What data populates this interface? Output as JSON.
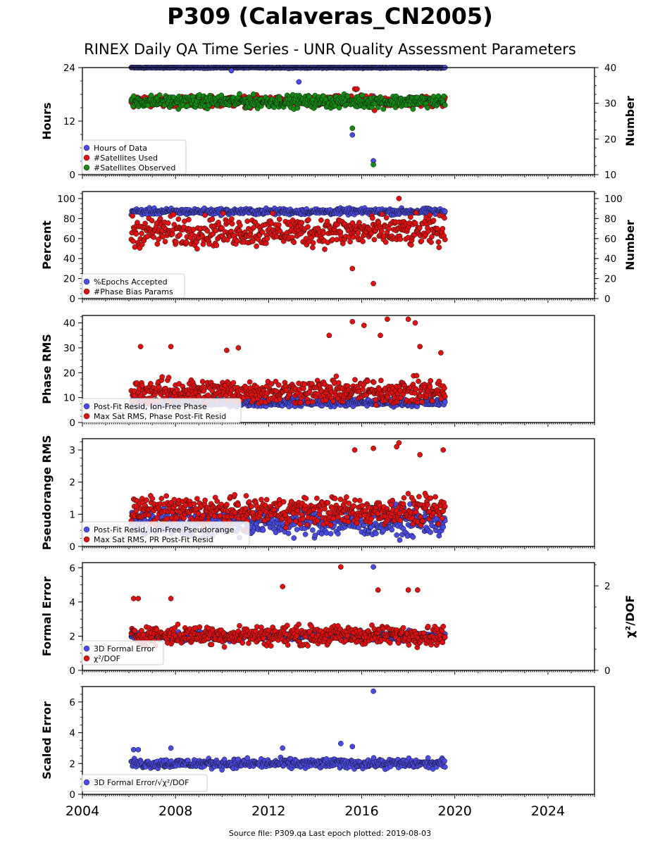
{
  "title": "P309 (Calaveras_CN2005)",
  "subtitle": "RINEX Daily QA Time Series - UNR Quality Assessment Parameters",
  "footer": "Source file: P309.qa Last epoch plotted: 2019-08-03",
  "colors": {
    "blue": "#4a4ae6",
    "red": "#e01010",
    "green": "#128a12"
  },
  "chart_data": [
    {
      "type": "scatter",
      "ylabel": "Hours",
      "y2label": "Number",
      "xlim": [
        2004,
        2026
      ],
      "x_ticks": [
        "2004",
        "2008",
        "2012",
        "2016",
        "2020",
        "2024"
      ],
      "ylim": [
        0,
        24
      ],
      "y_ticks": [
        0,
        12,
        24
      ],
      "y2lim": [
        10,
        40
      ],
      "y2_ticks": [
        10,
        20,
        30,
        40
      ],
      "series": [
        {
          "name": "Hours of Data",
          "color": "blue",
          "axis": "left",
          "x_range": [
            2006.1,
            2019.58
          ],
          "base": 24,
          "spread": 0.1,
          "outliers": [
            [
              2010.4,
              23.3
            ],
            [
              2013.3,
              20.8
            ],
            [
              2015.6,
              8.9
            ],
            [
              2015.75,
              19.1
            ],
            [
              2016.5,
              17.6
            ],
            [
              2016.5,
              3.1
            ]
          ]
        },
        {
          "name": "#Satellites Used",
          "color": "red",
          "axis": "right",
          "x_range": [
            2006.1,
            2019.58
          ],
          "base": 30.5,
          "spread": 1.2,
          "outliers": [
            [
              2015.7,
              34.0
            ],
            [
              2015.8,
              34.0
            ],
            [
              2016.55,
              28.0
            ]
          ]
        },
        {
          "name": "#Satellites Observed",
          "color": "green",
          "axis": "right",
          "x_range": [
            2006.1,
            2019.58
          ],
          "base": 30.5,
          "spread": 1.4,
          "outliers": [
            [
              2015.6,
              23.0
            ],
            [
              2016.5,
              12.8
            ]
          ]
        }
      ]
    },
    {
      "type": "scatter",
      "ylabel": "Percent",
      "y2label": "Number",
      "xlim": [
        2004,
        2026
      ],
      "x_ticks": [
        "2004",
        "2008",
        "2012",
        "2016",
        "2020",
        "2024"
      ],
      "ylim": [
        0,
        107
      ],
      "y_ticks": [
        0,
        20,
        40,
        60,
        80,
        100
      ],
      "y2lim": [
        0,
        107
      ],
      "y2_ticks": [
        0,
        20,
        40,
        60,
        80,
        100
      ],
      "series": [
        {
          "name": "%Epochs Accepted",
          "color": "blue",
          "axis": "left",
          "x_range": [
            2006.1,
            2019.58
          ],
          "base": 87,
          "spread": 2.5,
          "outliers": []
        },
        {
          "name": "#Phase Bias Params",
          "color": "red",
          "axis": "right",
          "x_range": [
            2006.1,
            2019.58
          ],
          "base": 67,
          "spread": 12,
          "outliers": [
            [
              2015.6,
              30
            ],
            [
              2016.5,
              15
            ],
            [
              2017.6,
              100
            ]
          ]
        }
      ]
    },
    {
      "type": "scatter",
      "ylabel": "Phase RMS",
      "xlim": [
        2004,
        2026
      ],
      "x_ticks": [
        "2004",
        "2008",
        "2012",
        "2016",
        "2020",
        "2024"
      ],
      "ylim": [
        0,
        43
      ],
      "y_ticks": [
        0,
        10,
        20,
        30,
        40
      ],
      "series": [
        {
          "name": "Post-Fit Resid, Ion-Free Phase",
          "color": "blue",
          "axis": "left",
          "x_range": [
            2006.1,
            2019.58
          ],
          "base": 8,
          "spread": 1.2,
          "outliers": []
        },
        {
          "name": "Max Sat RMS, Phase Post-Fit Resid",
          "color": "red",
          "axis": "left",
          "x_range": [
            2006.1,
            2019.58
          ],
          "base": 12.5,
          "spread": 4,
          "outliers": [
            [
              2006.5,
              30.5
            ],
            [
              2007.8,
              30.5
            ],
            [
              2010.2,
              29
            ],
            [
              2010.7,
              30
            ],
            [
              2014.6,
              35
            ],
            [
              2015.6,
              40.5
            ],
            [
              2016.1,
              39
            ],
            [
              2016.8,
              35
            ],
            [
              2017.1,
              41.5
            ],
            [
              2018.0,
              41.5
            ],
            [
              2018.3,
              40
            ],
            [
              2018.5,
              30.5
            ],
            [
              2019.4,
              28
            ]
          ]
        }
      ]
    },
    {
      "type": "scatter",
      "ylabel": "Pseudorange RMS",
      "xlim": [
        2004,
        2026
      ],
      "x_ticks": [
        "2004",
        "2008",
        "2012",
        "2016",
        "2020",
        "2024"
      ],
      "ylim": [
        0,
        3.35
      ],
      "y_ticks": [
        0,
        1,
        2,
        3
      ],
      "series": [
        {
          "name": "Post-Fit Resid, Ion-Free Pseudorange",
          "color": "blue",
          "axis": "left",
          "x_range": [
            2006.1,
            2019.58
          ],
          "base": 0.75,
          "spread": 0.35,
          "outliers": []
        },
        {
          "name": "Max Sat RMS, PR Post-Fit Resid",
          "color": "red",
          "axis": "left",
          "x_range": [
            2006.1,
            2019.58
          ],
          "base": 1.1,
          "spread": 0.35,
          "outliers": [
            [
              2015.7,
              3.0
            ],
            [
              2016.5,
              3.05
            ],
            [
              2017.5,
              3.1
            ],
            [
              2017.6,
              3.22
            ],
            [
              2018.5,
              2.85
            ],
            [
              2019.5,
              3.0
            ]
          ]
        }
      ]
    },
    {
      "type": "scatter",
      "ylabel": "Formal Error",
      "y2label": "χ²/DOF",
      "xlim": [
        2004,
        2026
      ],
      "x_ticks": [
        "2004",
        "2008",
        "2012",
        "2016",
        "2020",
        "2024"
      ],
      "ylim": [
        0,
        6.3
      ],
      "y_ticks": [
        0,
        2,
        4,
        6
      ],
      "y2lim": [
        0,
        2.55
      ],
      "y2_ticks": [
        0,
        2
      ],
      "series": [
        {
          "name": "3D Formal Error",
          "color": "blue",
          "axis": "left",
          "x_range": [
            2006.1,
            2019.58
          ],
          "base": 2.0,
          "spread": 0.2,
          "outliers": [
            [
              2016.5,
              6.05
            ]
          ]
        },
        {
          "name": "χ²/DOF",
          "color": "red",
          "axis": "left",
          "x_range": [
            2006.1,
            2019.58
          ],
          "base": 2.05,
          "spread": 0.45,
          "outliers": [
            [
              2006.2,
              4.2
            ],
            [
              2006.4,
              4.2
            ],
            [
              2007.8,
              4.2
            ],
            [
              2012.6,
              4.9
            ],
            [
              2015.1,
              6.05
            ],
            [
              2016.7,
              4.7
            ],
            [
              2018.0,
              4.7
            ],
            [
              2018.4,
              4.7
            ]
          ]
        }
      ]
    },
    {
      "type": "scatter",
      "ylabel": "Scaled Error",
      "xlim": [
        2004,
        2026
      ],
      "x_ticks": [
        "2004",
        "2008",
        "2012",
        "2016",
        "2020",
        "2024"
      ],
      "ylim": [
        0,
        7
      ],
      "y_ticks": [
        0,
        2,
        4,
        6
      ],
      "series": [
        {
          "name": "3D Formal Error/√χ²/DOF",
          "color": "blue",
          "axis": "left",
          "x_range": [
            2006.1,
            2019.58
          ],
          "base": 2.0,
          "spread": 0.25,
          "outliers": [
            [
              2006.2,
              2.9
            ],
            [
              2006.4,
              2.9
            ],
            [
              2007.8,
              3.0
            ],
            [
              2012.6,
              3.0
            ],
            [
              2015.1,
              3.3
            ],
            [
              2015.6,
              3.1
            ],
            [
              2016.5,
              6.7
            ]
          ]
        }
      ]
    }
  ]
}
